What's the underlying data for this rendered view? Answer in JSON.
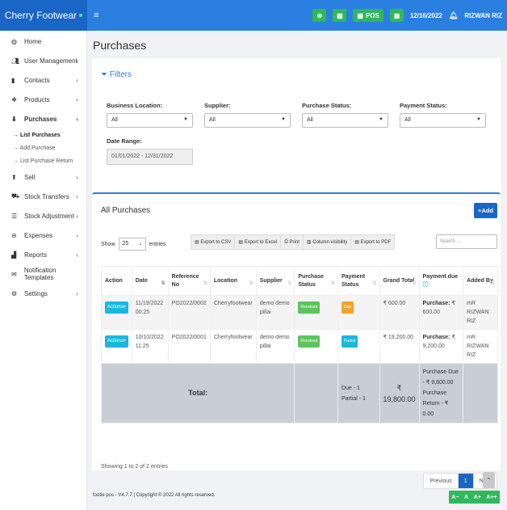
{
  "header": {
    "brand": "Cherry Footwear",
    "pos_label": "POS",
    "date": "12/16/2022",
    "user": "RIZWAN RIZ",
    "menu_icon": "hamburger-icon",
    "accent": "#2b7fe0",
    "brand_bg": "#1a66c6",
    "green": "#2fb85c"
  },
  "sidebar": {
    "items": [
      {
        "label": "Home",
        "icon": "dashboard-icon",
        "chev": ""
      },
      {
        "label": "User Management",
        "icon": "users-icon",
        "chev": "‹"
      },
      {
        "label": "Contacts",
        "icon": "address-book-icon",
        "chev": "‹"
      },
      {
        "label": "Products",
        "icon": "cubes-icon",
        "chev": "‹"
      },
      {
        "label": "Purchases",
        "icon": "arrow-circle-down-icon",
        "chev": "‹"
      },
      {
        "label": "Sell",
        "icon": "arrow-circle-up-icon",
        "chev": "‹"
      },
      {
        "label": "Stock Transfers",
        "icon": "truck-icon",
        "chev": "‹"
      },
      {
        "label": "Stock Adjustment",
        "icon": "database-icon",
        "chev": "‹"
      },
      {
        "label": "Expenses",
        "icon": "minus-circle-icon",
        "chev": "‹"
      },
      {
        "label": "Reports",
        "icon": "chart-icon",
        "chev": "‹"
      },
      {
        "label": "Notification Templates",
        "icon": "envelope-icon",
        "chev": ""
      },
      {
        "label": "Settings",
        "icon": "cog-icon",
        "chev": "‹"
      }
    ],
    "purchase_sub": [
      {
        "label": "→ List Purchases"
      },
      {
        "label": "→ Add Purchase"
      },
      {
        "label": "→ List Purchase Return"
      }
    ]
  },
  "page": {
    "title": "Purchases"
  },
  "filters": {
    "heading": "Filters",
    "business_location": {
      "label": "Business Location:",
      "value": "All"
    },
    "supplier": {
      "label": "Supplier:",
      "value": "All"
    },
    "purchase_status": {
      "label": "Purchase Status:",
      "value": "All"
    },
    "payment_status": {
      "label": "Payment Status:",
      "value": "All"
    },
    "date_range": {
      "label": "Date Range:",
      "value": "01/01/2022 - 12/31/2022"
    }
  },
  "list": {
    "heading": "All Purchases",
    "add_label": "+Add",
    "show_label": "Show",
    "entries_value": "25",
    "entries_label": "entries",
    "export_buttons": [
      "Export to CSV",
      "Export to Excel",
      "Print",
      "Column visibility",
      "Export to PDF"
    ],
    "search_placeholder": "Search ...",
    "columns": [
      "Action",
      "Date",
      "Reference No",
      "Location",
      "Supplier",
      "Purchase Status",
      "Payment Status",
      "Grand Total",
      "Payment due",
      "Added By"
    ],
    "rows": [
      {
        "action": "Actions▾",
        "date": "11/19/2022 00:25",
        "ref": "PO2022/0002",
        "location": "Cherryfootwear",
        "supplier": "demo demo pillai",
        "purchase_status": "Received",
        "payment_status": "Due",
        "grand_total": "₹ 600.00",
        "due_label": "Purchase:",
        "due_value": "₹ 600.00",
        "added_by": "mR RIZWAN RIZ"
      },
      {
        "action": "Actions▾",
        "date": "10/10/2022 11:25",
        "ref": "PO2022/0001",
        "location": "Cherryfootwear",
        "supplier": "demo demo pillai",
        "purchase_status": "Received",
        "payment_status": "Partial",
        "grand_total": "₹ 19,200.00",
        "due_label": "Purchase:",
        "due_value": "₹ 9,200.00",
        "added_by": "mR RIZWAN RIZ"
      }
    ],
    "total": {
      "label": "Total:",
      "status_summary": "Due - 1 Partial - 1",
      "grand_total": "₹ 19,800.00",
      "payment_due": "Purchase Due - ₹ 9,800.00 Purchase Return - ₹ 0.00"
    },
    "showing": "Showing 1 to 2 of 2 entries",
    "pager": {
      "previous": "Previous",
      "current": "1",
      "next": "Next"
    }
  },
  "footer": {
    "text": "footie pos - V4.7.7 | Copyright © 2022 All rights reserved.",
    "font_controls": [
      "A−",
      "A",
      "A+",
      "A++"
    ]
  }
}
